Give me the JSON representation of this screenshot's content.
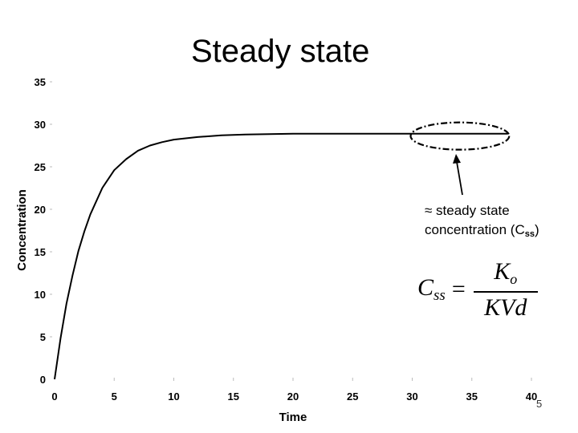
{
  "slide": {
    "title": "Steady state",
    "number": "5"
  },
  "annotation": {
    "line1": "≈ steady state",
    "line2_main": "concentration (C",
    "line2_sub": "ss",
    "line2_end": ")"
  },
  "formula": {
    "lhs_main": "C",
    "lhs_sub": "ss",
    "equals": "=",
    "numerator_main": "K",
    "numerator_sub": "o",
    "denominator": "KVd"
  },
  "chart_data": {
    "type": "line",
    "title": "",
    "xlabel": "Time",
    "ylabel": "Concentration",
    "xlim": [
      0,
      40
    ],
    "ylim": [
      0,
      35
    ],
    "x_ticks": [
      "0",
      "5",
      "10",
      "15",
      "20",
      "25",
      "30",
      "35",
      "40"
    ],
    "y_ticks": [
      "0",
      "5",
      "10",
      "15",
      "20",
      "25",
      "30",
      "35"
    ],
    "grid": false,
    "legend": "none",
    "series": [
      {
        "x": [
          0,
          0.5,
          1,
          1.5,
          2,
          2.5,
          3,
          4,
          5,
          6,
          7,
          8,
          9,
          10,
          12,
          14,
          16,
          18,
          20,
          25,
          30,
          35,
          38
        ],
        "y": [
          0,
          4.8,
          8.9,
          12.2,
          15.1,
          17.4,
          19.4,
          22.5,
          24.6,
          25.9,
          26.9,
          27.5,
          27.9,
          28.2,
          28.5,
          28.7,
          28.8,
          28.85,
          28.9,
          28.9,
          28.9,
          28.9,
          28.9
        ]
      }
    ],
    "highlight": {
      "type": "ellipse",
      "x_range": [
        30,
        38
      ],
      "y": 28.9
    }
  }
}
